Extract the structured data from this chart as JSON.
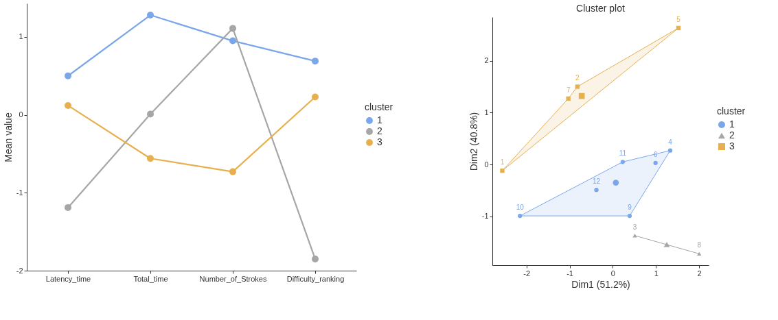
{
  "chart_data": [
    {
      "type": "line",
      "ylabel": "Mean value",
      "categories": [
        "Latency_time",
        "Total_time",
        "Number_of_Strokes",
        "Difficulty_ranking"
      ],
      "ylim": [
        -2,
        1.43
      ],
      "yticks": [
        -2,
        -1,
        0,
        1
      ],
      "marker": "circle",
      "legend": "right",
      "legend_title": "cluster",
      "series": [
        {
          "name": "1",
          "color": "#7aa6ea",
          "values": [
            0.5,
            1.28,
            0.95,
            0.69
          ]
        },
        {
          "name": "2",
          "color": "#a6a6a6",
          "values": [
            -1.19,
            0.01,
            1.11,
            -1.85
          ]
        },
        {
          "name": "3",
          "color": "#e6b04f",
          "values": [
            0.12,
            -0.56,
            -0.73,
            0.23
          ]
        }
      ]
    },
    {
      "type": "scatter",
      "title": "Cluster plot",
      "xlabel": "Dim1 (51.2%)",
      "ylabel": "Dim2 (40.8%)",
      "xlim": [
        -2.79,
        2.22
      ],
      "ylim": [
        -1.94,
        2.84
      ],
      "xticks": [
        -2,
        -1,
        0,
        1,
        2
      ],
      "yticks": [
        -1,
        0,
        1,
        2
      ],
      "legend": "right",
      "legend_title": "cluster",
      "series": [
        {
          "type": "area",
          "color": "#7aa6ea",
          "x": [
            -2.15,
            0.39,
            1.33,
            0.23,
            -2.15
          ],
          "values": [
            -0.99,
            -0.99,
            0.27,
            0.05,
            -0.99
          ]
        },
        {
          "type": "line",
          "color": "#a6a6a6",
          "x": [
            0.51,
            2.0
          ],
          "values": [
            -1.37,
            -1.72
          ]
        },
        {
          "type": "area",
          "color": "#e6b04f",
          "x": [
            -2.56,
            1.52,
            -0.82,
            -1.03,
            -2.56
          ],
          "values": [
            -0.12,
            2.63,
            1.5,
            1.27,
            -0.12
          ]
        },
        {
          "name": "1",
          "marker": "circle",
          "color": "#7aa6ea",
          "x": [
            1.33,
            0.99,
            0.39,
            -2.15,
            0.23,
            -0.38
          ],
          "values": [
            0.27,
            0.03,
            -0.99,
            -0.99,
            0.05,
            -0.49
          ]
        },
        {
          "name": "2",
          "marker": "triangle",
          "color": "#a6a6a6",
          "x": [
            0.51,
            2.0
          ],
          "values": [
            -1.37,
            -1.72
          ]
        },
        {
          "name": "3",
          "marker": "square",
          "color": "#e6b04f",
          "x": [
            -2.56,
            -0.82,
            1.52,
            -1.03
          ],
          "values": [
            -0.12,
            1.5,
            2.63,
            1.27
          ]
        },
        {
          "marker": "circle",
          "color": "#7aa6ea",
          "x": [
            0.07
          ],
          "values": [
            -0.35
          ]
        },
        {
          "marker": "triangle",
          "color": "#a6a6a6",
          "x": [
            1.25
          ],
          "values": [
            -1.54
          ]
        },
        {
          "marker": "square",
          "color": "#e6b04f",
          "x": [
            -0.72
          ],
          "values": [
            1.32
          ]
        }
      ],
      "annotations": [
        {
          "text": "4",
          "x": 1.33,
          "y": 0.27
        },
        {
          "text": "6",
          "x": 0.99,
          "y": 0.03
        },
        {
          "text": "9",
          "x": 0.39,
          "y": -0.99
        },
        {
          "text": "10",
          "x": -2.15,
          "y": -0.99
        },
        {
          "text": "11",
          "x": 0.23,
          "y": 0.05
        },
        {
          "text": "12",
          "x": -0.38,
          "y": -0.49
        },
        {
          "text": "3",
          "x": 0.51,
          "y": -1.37
        },
        {
          "text": "8",
          "x": 2.0,
          "y": -1.72
        },
        {
          "text": "1",
          "x": -2.56,
          "y": -0.12
        },
        {
          "text": "2",
          "x": -0.82,
          "y": 1.5
        },
        {
          "text": "5",
          "x": 1.52,
          "y": 2.63
        },
        {
          "text": "7",
          "x": -1.03,
          "y": 1.27
        }
      ]
    }
  ]
}
